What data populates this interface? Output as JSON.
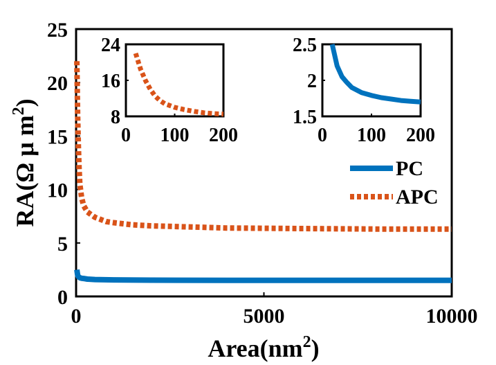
{
  "chart_data": {
    "main": {
      "type": "line",
      "xlabel": "Area(nm",
      "xlabel_sup": "2",
      "xlabel_end": ")",
      "ylabel": "RA(Ω μ m",
      "ylabel_sup": "2",
      "ylabel_end": ")",
      "xlim": [
        0,
        10000
      ],
      "ylim": [
        0,
        25
      ],
      "xticks": [
        "0",
        "5000",
        "10000"
      ],
      "yticks": [
        "0",
        "5",
        "10",
        "15",
        "20",
        "25"
      ],
      "legend_placement": "right",
      "series": [
        {
          "name": "PC",
          "color": "#0072BD",
          "style": "solid",
          "x": [
            20,
            40,
            60,
            100,
            150,
            200,
            300,
            500,
            1000,
            2000,
            4000,
            6000,
            8000,
            10000
          ],
          "y": [
            2.5,
            2.0,
            1.85,
            1.75,
            1.7,
            1.68,
            1.62,
            1.58,
            1.55,
            1.52,
            1.5,
            1.5,
            1.5,
            1.5
          ]
        },
        {
          "name": "APC",
          "color": "#D95319",
          "style": "dotted",
          "x": [
            20,
            40,
            60,
            80,
            100,
            150,
            200,
            300,
            500,
            800,
            1000,
            1500,
            2000,
            3000,
            4000,
            6000,
            8000,
            10000
          ],
          "y": [
            22,
            17,
            14,
            12,
            10.5,
            9.2,
            8.5,
            7.9,
            7.4,
            7.0,
            6.9,
            6.7,
            6.6,
            6.5,
            6.4,
            6.35,
            6.3,
            6.3
          ]
        }
      ]
    },
    "inset_apc": {
      "type": "line",
      "xlim": [
        0,
        200
      ],
      "ylim": [
        8,
        24
      ],
      "xticks": [
        "0",
        "100",
        "200"
      ],
      "yticks": [
        "8",
        "16",
        "24"
      ],
      "series": [
        {
          "name": "APC",
          "color": "#D95319",
          "style": "dotted",
          "x": [
            20,
            30,
            40,
            50,
            60,
            70,
            80,
            100,
            120,
            140,
            160,
            180,
            200
          ],
          "y": [
            22,
            18.5,
            16,
            14,
            12.5,
            11.5,
            10.8,
            10.0,
            9.5,
            9.1,
            8.8,
            8.6,
            8.5
          ]
        }
      ]
    },
    "inset_pc": {
      "type": "line",
      "xlim": [
        0,
        200
      ],
      "ylim": [
        1.5,
        2.5
      ],
      "xticks": [
        "0",
        "100",
        "200"
      ],
      "yticks": [
        "1.5",
        "2",
        "2.5"
      ],
      "series": [
        {
          "name": "PC",
          "color": "#0072BD",
          "style": "solid",
          "x": [
            20,
            30,
            40,
            50,
            60,
            80,
            100,
            120,
            140,
            160,
            180,
            200
          ],
          "y": [
            2.5,
            2.2,
            2.05,
            1.97,
            1.9,
            1.83,
            1.79,
            1.76,
            1.74,
            1.72,
            1.71,
            1.7
          ]
        }
      ]
    }
  }
}
